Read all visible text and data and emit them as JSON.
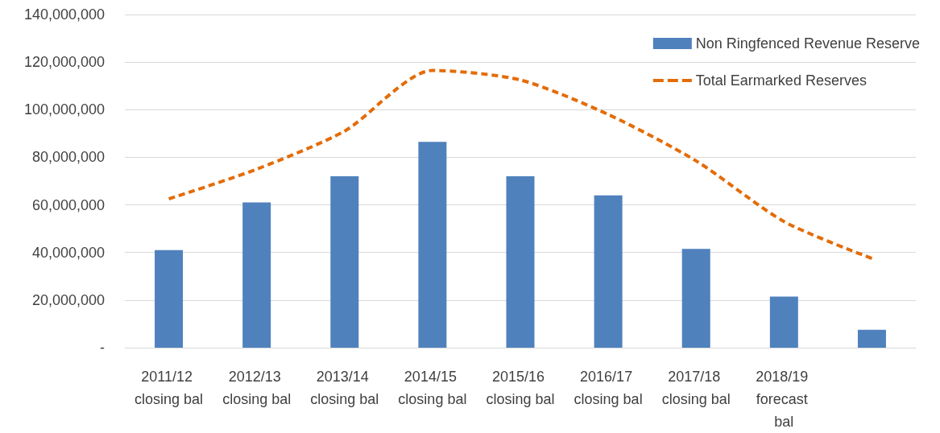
{
  "chart_data": {
    "type": "bar",
    "categories": [
      "2011/12 closing bal",
      "2012/13 closing bal",
      "2013/14 closing bal",
      "2014/15 closing bal",
      "2015/16 closing bal",
      "2016/17 closing bal",
      "2017/18 closing bal",
      "2018/19 forecast bal",
      null
    ],
    "series": [
      {
        "name": "Non Ringfenced Revenue Reserve",
        "color": "#4f81bd",
        "values": [
          41000000,
          61000000,
          72000000,
          86500000,
          72000000,
          64000000,
          41500000,
          21500000,
          7500000
        ]
      },
      {
        "name": "Total Earmarked Reserves",
        "type": "line",
        "color": "#e36c09",
        "line_style": "dashed",
        "marker": "none",
        "values": [
          62500000,
          75000000,
          91000000,
          116500000,
          112500000,
          98000000,
          78500000,
          53000000,
          37500000
        ]
      }
    ],
    "ylim": [
      0,
      140000000
    ],
    "yticks": [
      {
        "value": 0,
        "label": "-"
      },
      {
        "value": 20000000,
        "label": "20,000,000"
      },
      {
        "value": 40000000,
        "label": "40,000,000"
      },
      {
        "value": 60000000,
        "label": "60,000,000"
      },
      {
        "value": 80000000,
        "label": "80,000,000"
      },
      {
        "value": 100000000,
        "label": "100,000,000"
      },
      {
        "value": 120000000,
        "label": "120,000,000"
      },
      {
        "value": 140000000,
        "label": "140,000,000"
      }
    ],
    "grid": "y",
    "legend": "top right"
  }
}
